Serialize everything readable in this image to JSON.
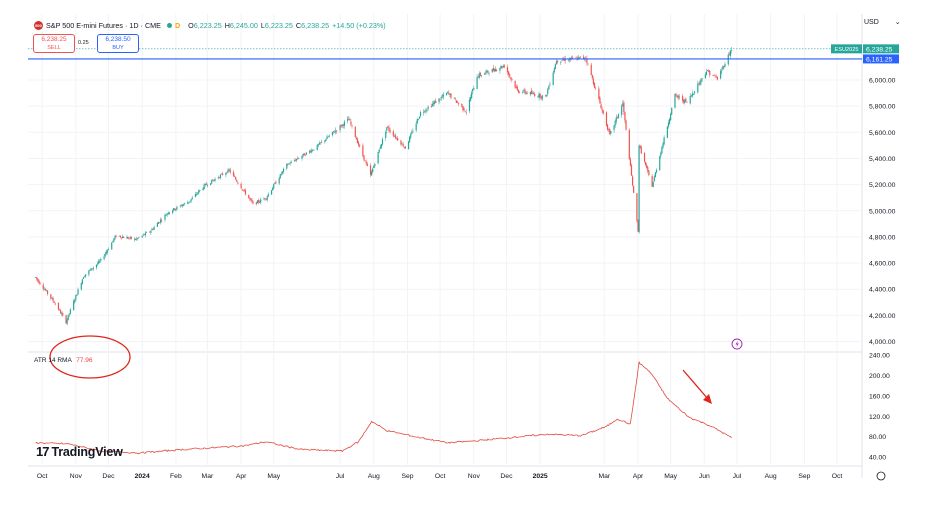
{
  "header": {
    "symbol": "S&P 500 E-mini Futures",
    "interval": "1D",
    "exchange": "CME",
    "logo_text": "500",
    "delay_badge": "D",
    "ohlc": [
      {
        "k": "O",
        "v": "6,223.25"
      },
      {
        "k": "H",
        "v": "6,245.00"
      },
      {
        "k": "L",
        "v": "6,223.25"
      },
      {
        "k": "C",
        "v": "6,238.25"
      }
    ],
    "change": "+14.50 (+0.23%)",
    "currency": "USD",
    "currency_chevron": "chevron-down-icon"
  },
  "trade": {
    "sell_price": "6,238.25",
    "sell_label": "SELL",
    "spread": "0.25",
    "buy_price": "6,238.50",
    "buy_label": "BUY"
  },
  "price_scale": {
    "ticks": [
      "6,000.00",
      "5,800.00",
      "5,600.00",
      "5,400.00",
      "5,200.00",
      "5,000.00",
      "4,800.00",
      "4,600.00",
      "4,400.00",
      "4,200.00",
      "4,000.00"
    ],
    "last_tag_symbol": "ESU2025",
    "last_tag_price": "6,238.25",
    "hline_price": "6,161.25"
  },
  "atr": {
    "label": "ATR 14 RMA",
    "value": "77.96",
    "ticks": [
      "240.00",
      "200.00",
      "160.00",
      "120.00",
      "80.00",
      "40.00"
    ]
  },
  "time_axis": [
    "Oct",
    "Nov",
    "Dec",
    "2024",
    "Feb",
    "Mar",
    "Apr",
    "May",
    "Jul",
    "Aug",
    "Sep",
    "Oct",
    "Nov",
    "Dec",
    "2025",
    "Mar",
    "Apr",
    "May",
    "Jun",
    "Jul",
    "Aug",
    "Sep",
    "Oct"
  ],
  "branding": {
    "logo_text": "TradingView",
    "mark": "17"
  },
  "icons": {
    "alert": "lightning-icon",
    "settings": "gear-icon"
  },
  "colors": {
    "up": "#26a69a",
    "down": "#ef5350",
    "atr_line": "#e04a3f",
    "hline": "#2962ff",
    "annotation": "#e0251b"
  },
  "chart_data": [
    {
      "type": "candlestick",
      "series": [
        {
          "name": "ES",
          "close_points": [
            [
              "2023-10-02",
              4490
            ],
            [
              "2023-10-20",
              4290
            ],
            [
              "2023-10-30",
              4150
            ],
            [
              "2023-11-15",
              4500
            ],
            [
              "2023-12-01",
              4620
            ],
            [
              "2023-12-15",
              4810
            ],
            [
              "2024-01-02",
              4780
            ],
            [
              "2024-01-15",
              4840
            ],
            [
              "2024-02-01",
              4990
            ],
            [
              "2024-02-20",
              5070
            ],
            [
              "2024-03-05",
              5190
            ],
            [
              "2024-03-28",
              5310
            ],
            [
              "2024-04-19",
              5050
            ],
            [
              "2024-05-01",
              5100
            ],
            [
              "2024-05-20",
              5350
            ],
            [
              "2024-06-15",
              5480
            ],
            [
              "2024-07-16",
              5700
            ],
            [
              "2024-08-05",
              5270
            ],
            [
              "2024-08-20",
              5640
            ],
            [
              "2024-09-06",
              5480
            ],
            [
              "2024-09-20",
              5750
            ],
            [
              "2024-10-15",
              5900
            ],
            [
              "2024-11-01",
              5760
            ],
            [
              "2024-11-11",
              6030
            ],
            [
              "2024-12-06",
              6110
            ],
            [
              "2024-12-18",
              5920
            ],
            [
              "2025-01-13",
              5870
            ],
            [
              "2025-01-23",
              6150
            ],
            [
              "2025-02-19",
              6170
            ],
            [
              "2025-03-13",
              5580
            ],
            [
              "2025-03-25",
              5820
            ],
            [
              "2025-04-08",
              4850
            ],
            [
              "2025-04-09",
              5500
            ],
            [
              "2025-04-21",
              5190
            ],
            [
              "2025-05-12",
              5880
            ],
            [
              "2025-05-23",
              5830
            ],
            [
              "2025-06-10",
              6070
            ],
            [
              "2025-06-20",
              6010
            ],
            [
              "2025-07-03",
              6238
            ]
          ]
        }
      ],
      "last_price": 6238.25,
      "horizontal_line": 6161.25,
      "ylim": [
        3950,
        6250
      ]
    },
    {
      "type": "line",
      "series": [
        {
          "name": "ATR 14 RMA",
          "points": [
            [
              "2023-10-02",
              68
            ],
            [
              "2023-11-01",
              66
            ],
            [
              "2023-12-01",
              52
            ],
            [
              "2024-01-05",
              48
            ],
            [
              "2024-02-15",
              55
            ],
            [
              "2024-04-10",
              62
            ],
            [
              "2024-05-01",
              70
            ],
            [
              "2024-06-01",
              55
            ],
            [
              "2024-07-10",
              52
            ],
            [
              "2024-07-25",
              70
            ],
            [
              "2024-08-06",
              110
            ],
            [
              "2024-08-20",
              92
            ],
            [
              "2024-09-15",
              80
            ],
            [
              "2024-10-15",
              68
            ],
            [
              "2024-11-10",
              72
            ],
            [
              "2024-12-20",
              80
            ],
            [
              "2025-01-15",
              85
            ],
            [
              "2025-02-15",
              82
            ],
            [
              "2025-03-10",
              100
            ],
            [
              "2025-03-20",
              115
            ],
            [
              "2025-04-01",
              105
            ],
            [
              "2025-04-09",
              225
            ],
            [
              "2025-04-20",
              205
            ],
            [
              "2025-05-05",
              155
            ],
            [
              "2025-05-25",
              118
            ],
            [
              "2025-06-15",
              100
            ],
            [
              "2025-07-03",
              77.96
            ]
          ]
        }
      ],
      "ylim": [
        30,
        245
      ]
    }
  ]
}
